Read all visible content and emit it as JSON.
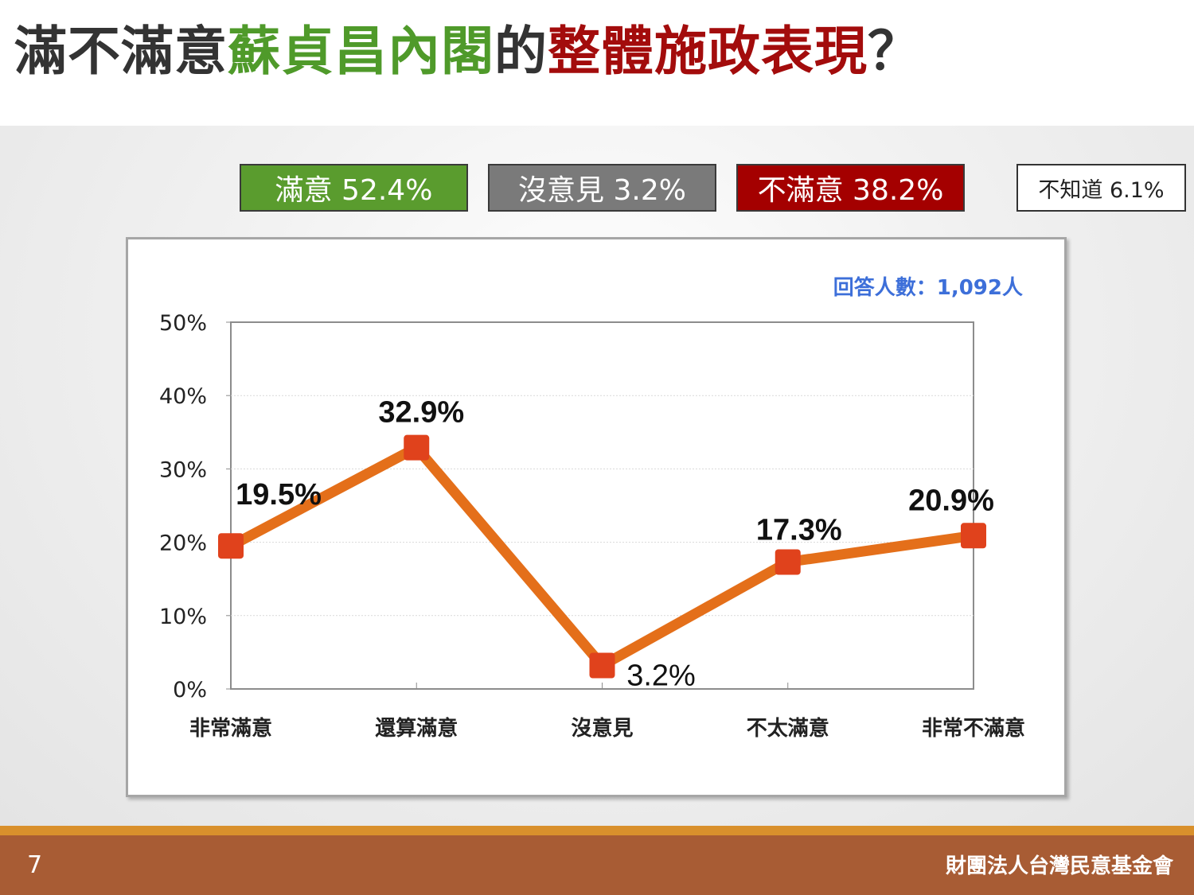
{
  "title": {
    "part1": "滿不滿意",
    "part2": "蘇貞昌內閣",
    "part3": "的",
    "part4": "整體施政表現",
    "part5": "？"
  },
  "colors": {
    "title_dark": "#333333",
    "title_green": "#4f9a2a",
    "title_red": "#a30c0c",
    "satisfied": "#5a9c2e",
    "no_opinion": "#7a7a7a",
    "dissatisfied": "#a40000",
    "line": "#e46f1a",
    "marker": "#e0421c"
  },
  "summary": {
    "satisfied": "滿意 52.4%",
    "no_opinion": "沒意見 3.2%",
    "dissatisfied": "不滿意 38.2%",
    "dont_know": "不知道 6.1%"
  },
  "respondents": "回答人數：1,092人",
  "chart_data": {
    "type": "line",
    "categories": [
      "非常滿意",
      "還算滿意",
      "沒意見",
      "不太滿意",
      "非常不滿意"
    ],
    "values": [
      19.5,
      32.9,
      3.2,
      17.3,
      20.9
    ],
    "data_labels": [
      "19.5%",
      "32.9%",
      "3.2%",
      "17.3%",
      "20.9%"
    ],
    "ylim": [
      0,
      50
    ],
    "yticks": [
      0,
      10,
      20,
      30,
      40,
      50
    ],
    "ytick_labels": [
      "0%",
      "10%",
      "20%",
      "30%",
      "40%",
      "50%"
    ],
    "grid": true,
    "title": "",
    "xlabel": "",
    "ylabel": ""
  },
  "footer": {
    "page": "7",
    "org": "財團法人台灣民意基金會"
  }
}
